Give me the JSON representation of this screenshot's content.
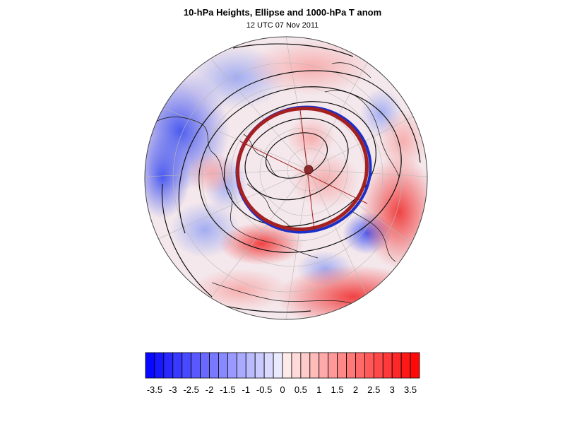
{
  "title": "10-hPa Heights, Ellipse and 1000-hPa T anom",
  "subtitle": "12 UTC 07 Nov 2011",
  "colorbar": {
    "levels": [
      -3.75,
      -3.5,
      -3.25,
      -3,
      -2.75,
      -2.5,
      -2.25,
      -2,
      -1.75,
      -1.5,
      -1.25,
      -1,
      -0.75,
      -0.5,
      -0.25,
      0,
      0.25,
      0.5,
      0.75,
      1,
      1.25,
      1.5,
      1.75,
      2,
      2.25,
      2.5,
      2.75,
      3,
      3.25,
      3.5,
      3.75
    ],
    "tick_labels": [
      "-3.5",
      "-3",
      "-2.5",
      "-2",
      "-1.5",
      "-1",
      "-0.5",
      "0",
      "0.5",
      "1",
      "1.5",
      "2",
      "2.5",
      "3",
      "3.5"
    ],
    "cold_color": "#0000ff",
    "warm_color": "#ff0000",
    "neutral_color": "#ffffff"
  },
  "map": {
    "projection": "north-polar-orthographic",
    "ellipse_blue_color": "#1c2fc8",
    "ellipse_red_color": "#a52020",
    "center_marker_color": "#8a2a2a"
  }
}
